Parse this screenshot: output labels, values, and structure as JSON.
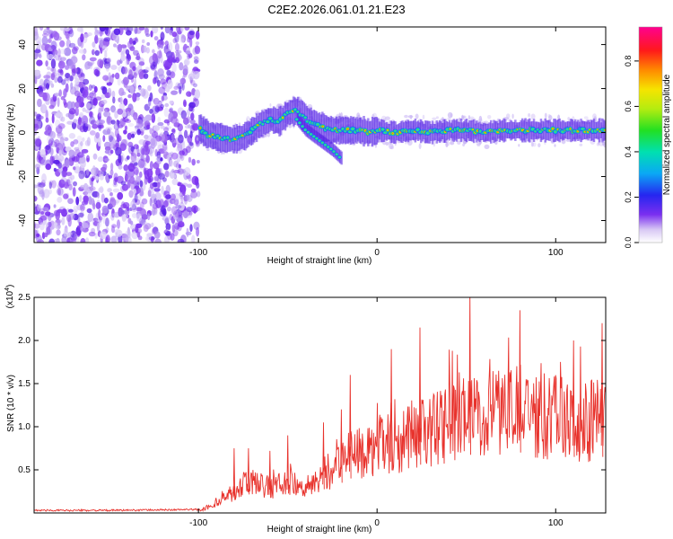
{
  "title": "C2E2.2026.061.01.21.E23",
  "chart_data": [
    {
      "type": "heatmap",
      "name": "spectrogram",
      "xlabel": "Height of straight line (km)",
      "ylabel": "Frequency (Hz)",
      "xlim": [
        -192,
        128
      ],
      "ylim": [
        -50,
        48
      ],
      "xticks": [
        -100,
        0,
        100
      ],
      "xtick_labels": [
        "-100",
        "0",
        "100"
      ],
      "yticks": [
        -40,
        -20,
        0,
        20,
        40
      ],
      "ytick_labels": [
        "-40",
        "-20",
        "0",
        "20",
        "40"
      ],
      "noise_region_end_km": -100,
      "signal_ridge": {
        "x": [
          -100,
          -95,
          -90,
          -85,
          -80,
          -75,
          -70,
          -65,
          -60,
          -55,
          -50,
          -45,
          -40,
          -35,
          -30,
          -25,
          -20,
          -15,
          -10,
          -5,
          0,
          10,
          20,
          30,
          40,
          50,
          60,
          70,
          80,
          90,
          100,
          110,
          120,
          128
        ],
        "y": [
          2,
          -1,
          -2,
          -3,
          -3,
          -2,
          1,
          4,
          6,
          5,
          9,
          10,
          6,
          4,
          2,
          1,
          1,
          1,
          1,
          0,
          1,
          0,
          1,
          0,
          1,
          1,
          0,
          1,
          1,
          1,
          1,
          1,
          1,
          1
        ]
      },
      "secondary_branch": {
        "x": [
          -45,
          -40,
          -35,
          -30,
          -25,
          -20
        ],
        "y": [
          6,
          1,
          -2,
          -5,
          -8,
          -12
        ]
      },
      "colorbar": {
        "label": "Normalized spectral amplitude",
        "range": [
          0.0,
          0.95
        ],
        "ticks": [
          0.0,
          0.2,
          0.4,
          0.6,
          0.8
        ],
        "tick_labels": [
          "0.0",
          "0.2",
          "0.4",
          "0.6",
          "0.8"
        ]
      }
    },
    {
      "type": "line",
      "name": "snr",
      "xlabel": "Height of straight line (km)",
      "ylabel": "SNR (10 * v/v)",
      "scale_label": "(x10",
      "scale_exponent": "4",
      "xlim": [
        -192,
        128
      ],
      "ylim": [
        0,
        2.5
      ],
      "xticks": [
        -100,
        0,
        100
      ],
      "xtick_labels": [
        "-100",
        "0",
        "100"
      ],
      "yticks": [
        0.5,
        1.0,
        1.5,
        2.0,
        2.5
      ],
      "ytick_labels": [
        "0.5",
        "1.0",
        "1.5",
        "2.0",
        "2.5"
      ],
      "color": "#e8322c",
      "series": [
        {
          "name": "SNR envelope",
          "x": [
            -192,
            -150,
            -100,
            -95,
            -90,
            -85,
            -80,
            -75,
            -70,
            -65,
            -60,
            -55,
            -50,
            -45,
            -40,
            -35,
            -30,
            -25,
            -20,
            -15,
            -10,
            -5,
            0,
            10,
            20,
            30,
            40,
            50,
            60,
            70,
            80,
            90,
            100,
            110,
            120,
            128
          ],
          "y": [
            0.02,
            0.02,
            0.03,
            0.08,
            0.15,
            0.25,
            0.3,
            0.4,
            0.45,
            0.4,
            0.35,
            0.4,
            0.45,
            0.4,
            0.35,
            0.45,
            0.55,
            0.6,
            0.7,
            0.8,
            0.85,
            0.9,
            0.95,
            1.0,
            1.1,
            1.15,
            1.25,
            1.35,
            1.35,
            1.4,
            1.4,
            1.35,
            1.35,
            1.3,
            1.3,
            1.3
          ]
        },
        {
          "name": "SNR peaks",
          "x": [
            -80,
            -72,
            -60,
            -50,
            -30,
            -20,
            -15,
            8,
            24,
            52,
            80,
            110,
            126
          ],
          "y": [
            0.75,
            0.75,
            0.72,
            0.9,
            1.05,
            1.2,
            1.6,
            1.9,
            2.15,
            2.55,
            2.35,
            2.0,
            2.2
          ]
        }
      ]
    }
  ]
}
